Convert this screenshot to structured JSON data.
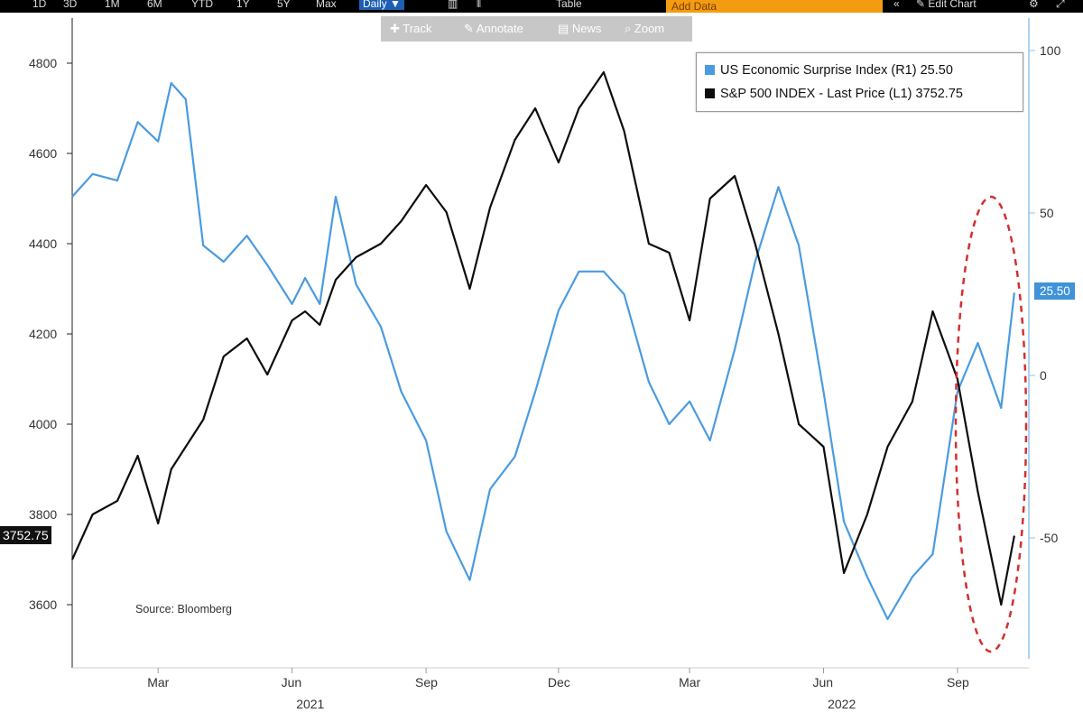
{
  "toolbar": {
    "ranges": [
      "1D",
      "3D",
      "1M",
      "6M",
      "YTD",
      "1Y",
      "5Y",
      "Max"
    ],
    "frequency": "Daily",
    "frequency_arrow": "▼",
    "table_label": "Table",
    "data_label": "Add Data",
    "edit_chart": "Edit Chart"
  },
  "tools": {
    "track": "Track",
    "annotate": "Annotate",
    "news": "News",
    "zoom": "Zoom"
  },
  "colors": {
    "surprise": "#4a9be0",
    "spx": "#0d0d0d",
    "highlight": "#d32f2f"
  },
  "chart_data": {
    "type": "line",
    "x_axis": {
      "ticks": [
        "Mar",
        "Jun",
        "Sep",
        "Dec",
        "Mar",
        "Jun",
        "Sep"
      ],
      "year_labels": [
        "2021",
        "2022"
      ],
      "range": [
        "2021-01",
        "2022-10"
      ]
    },
    "y_left": {
      "ticks": [
        3600,
        3800,
        4000,
        4200,
        4400,
        4600,
        4800
      ],
      "range": [
        3460,
        4900
      ]
    },
    "y_right": {
      "ticks": [
        -50,
        0,
        50,
        100
      ],
      "range": [
        -90,
        110
      ]
    },
    "legend_position": "top-right",
    "grid": false,
    "source": "Source: Bloomberg",
    "series": [
      {
        "name": "US Economic Surprise Index (R1)",
        "last": "25.50",
        "axis": "right",
        "x": [
          "2021-01-01",
          "2021-01-15",
          "2021-02-01",
          "2021-02-15",
          "2021-03-01",
          "2021-03-10",
          "2021-03-20",
          "2021-04-01",
          "2021-04-15",
          "2021-05-01",
          "2021-05-15",
          "2021-06-01",
          "2021-06-10",
          "2021-06-20",
          "2021-07-01",
          "2021-07-15",
          "2021-08-01",
          "2021-08-15",
          "2021-09-01",
          "2021-09-15",
          "2021-10-01",
          "2021-10-15",
          "2021-11-01",
          "2021-11-15",
          "2021-12-01",
          "2021-12-15",
          "2022-01-01",
          "2022-01-15",
          "2022-02-01",
          "2022-02-15",
          "2022-03-01",
          "2022-03-15",
          "2022-04-01",
          "2022-04-15",
          "2022-05-01",
          "2022-05-15",
          "2022-06-01",
          "2022-06-15",
          "2022-07-01",
          "2022-07-15",
          "2022-08-01",
          "2022-08-15",
          "2022-09-01",
          "2022-09-15",
          "2022-10-01",
          "2022-10-10"
        ],
        "values": [
          55,
          62,
          60,
          78,
          72,
          90,
          85,
          40,
          35,
          43,
          34,
          22,
          30,
          22,
          55,
          28,
          15,
          -5,
          -20,
          -48,
          -63,
          -35,
          -25,
          -5,
          20,
          32,
          32,
          25,
          -2,
          -15,
          -8,
          -20,
          8,
          35,
          58,
          40,
          -5,
          -45,
          -62,
          -75,
          -62,
          -55,
          -5,
          10,
          -10,
          25.5
        ]
      },
      {
        "name": "S&P 500 INDEX - Last Price (L1)",
        "last": "3752.75",
        "axis": "left",
        "x": [
          "2021-01-01",
          "2021-01-15",
          "2021-02-01",
          "2021-02-15",
          "2021-03-01",
          "2021-03-10",
          "2021-03-20",
          "2021-04-01",
          "2021-04-15",
          "2021-05-01",
          "2021-05-15",
          "2021-06-01",
          "2021-06-10",
          "2021-06-20",
          "2021-07-01",
          "2021-07-15",
          "2021-08-01",
          "2021-08-15",
          "2021-09-01",
          "2021-09-15",
          "2021-10-01",
          "2021-10-15",
          "2021-11-01",
          "2021-11-15",
          "2021-12-01",
          "2021-12-15",
          "2022-01-01",
          "2022-01-15",
          "2022-02-01",
          "2022-02-15",
          "2022-03-01",
          "2022-03-15",
          "2022-04-01",
          "2022-04-15",
          "2022-05-01",
          "2022-05-15",
          "2022-06-01",
          "2022-06-15",
          "2022-07-01",
          "2022-07-15",
          "2022-08-01",
          "2022-08-15",
          "2022-09-01",
          "2022-09-15",
          "2022-10-01",
          "2022-10-10"
        ],
        "values": [
          3700,
          3800,
          3830,
          3930,
          3780,
          3900,
          3950,
          4010,
          4150,
          4190,
          4110,
          4230,
          4250,
          4220,
          4320,
          4370,
          4400,
          4450,
          4530,
          4470,
          4300,
          4480,
          4630,
          4700,
          4580,
          4700,
          4780,
          4650,
          4400,
          4380,
          4230,
          4500,
          4550,
          4400,
          4200,
          4000,
          3950,
          3670,
          3800,
          3950,
          4050,
          4250,
          4100,
          3850,
          3600,
          3752.75
        ]
      }
    ],
    "annotations": [
      "dashed red ellipse around the latest values (Sep–Oct 2022)"
    ]
  }
}
